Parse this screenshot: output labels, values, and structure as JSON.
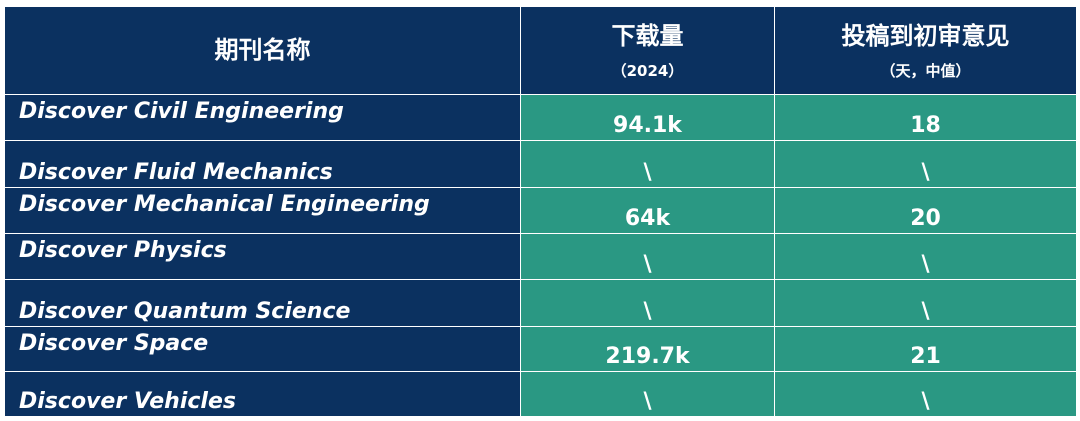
{
  "header": {
    "col_name": "期刊名称",
    "col_downloads": "下载量",
    "col_downloads_sub": "（2024）",
    "col_review": "投稿到初审意见",
    "col_review_sub": "（天，中值）"
  },
  "rows": [
    {
      "name": "Discover Civil Engineering",
      "downloads": "94.1k",
      "review": "18"
    },
    {
      "name": "Discover Fluid Mechanics",
      "downloads": "\\",
      "review": "\\"
    },
    {
      "name": "Discover Mechanical Engineering",
      "downloads": "64k",
      "review": "20"
    },
    {
      "name": "Discover Physics",
      "downloads": "\\",
      "review": "\\"
    },
    {
      "name": "Discover Quantum Science",
      "downloads": "\\",
      "review": "\\"
    },
    {
      "name": "Discover Space",
      "downloads": "219.7k",
      "review": "21"
    },
    {
      "name": "Discover Vehicles",
      "downloads": "\\",
      "review": "\\"
    }
  ],
  "colors": {
    "header_bg": "#0b3160",
    "value_bg": "#2a9883",
    "text": "#ffffff"
  }
}
